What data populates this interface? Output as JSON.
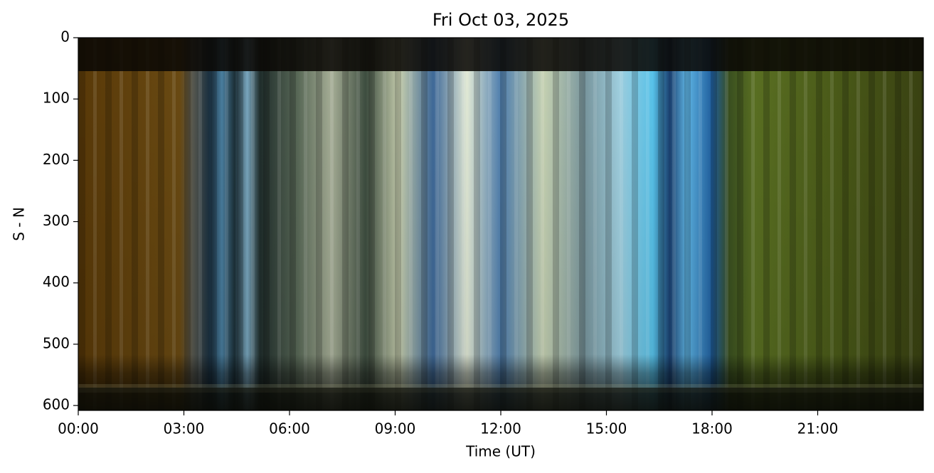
{
  "chart_data": {
    "type": "image",
    "title": "Fri Oct 03, 2025",
    "xlabel": "Time (UT)",
    "ylabel": "S - N",
    "xlim": [
      0,
      24
    ],
    "ylim": [
      0,
      608
    ],
    "y_inverted": true,
    "xticks": [
      {
        "value": 0,
        "label": "00:00"
      },
      {
        "value": 3,
        "label": "03:00"
      },
      {
        "value": 6,
        "label": "06:00"
      },
      {
        "value": 9,
        "label": "09:00"
      },
      {
        "value": 12,
        "label": "12:00"
      },
      {
        "value": 15,
        "label": "15:00"
      },
      {
        "value": 18,
        "label": "18:00"
      },
      {
        "value": 21,
        "label": "21:00"
      }
    ],
    "yticks": [
      0,
      100,
      200,
      300,
      400,
      500,
      600
    ]
  }
}
